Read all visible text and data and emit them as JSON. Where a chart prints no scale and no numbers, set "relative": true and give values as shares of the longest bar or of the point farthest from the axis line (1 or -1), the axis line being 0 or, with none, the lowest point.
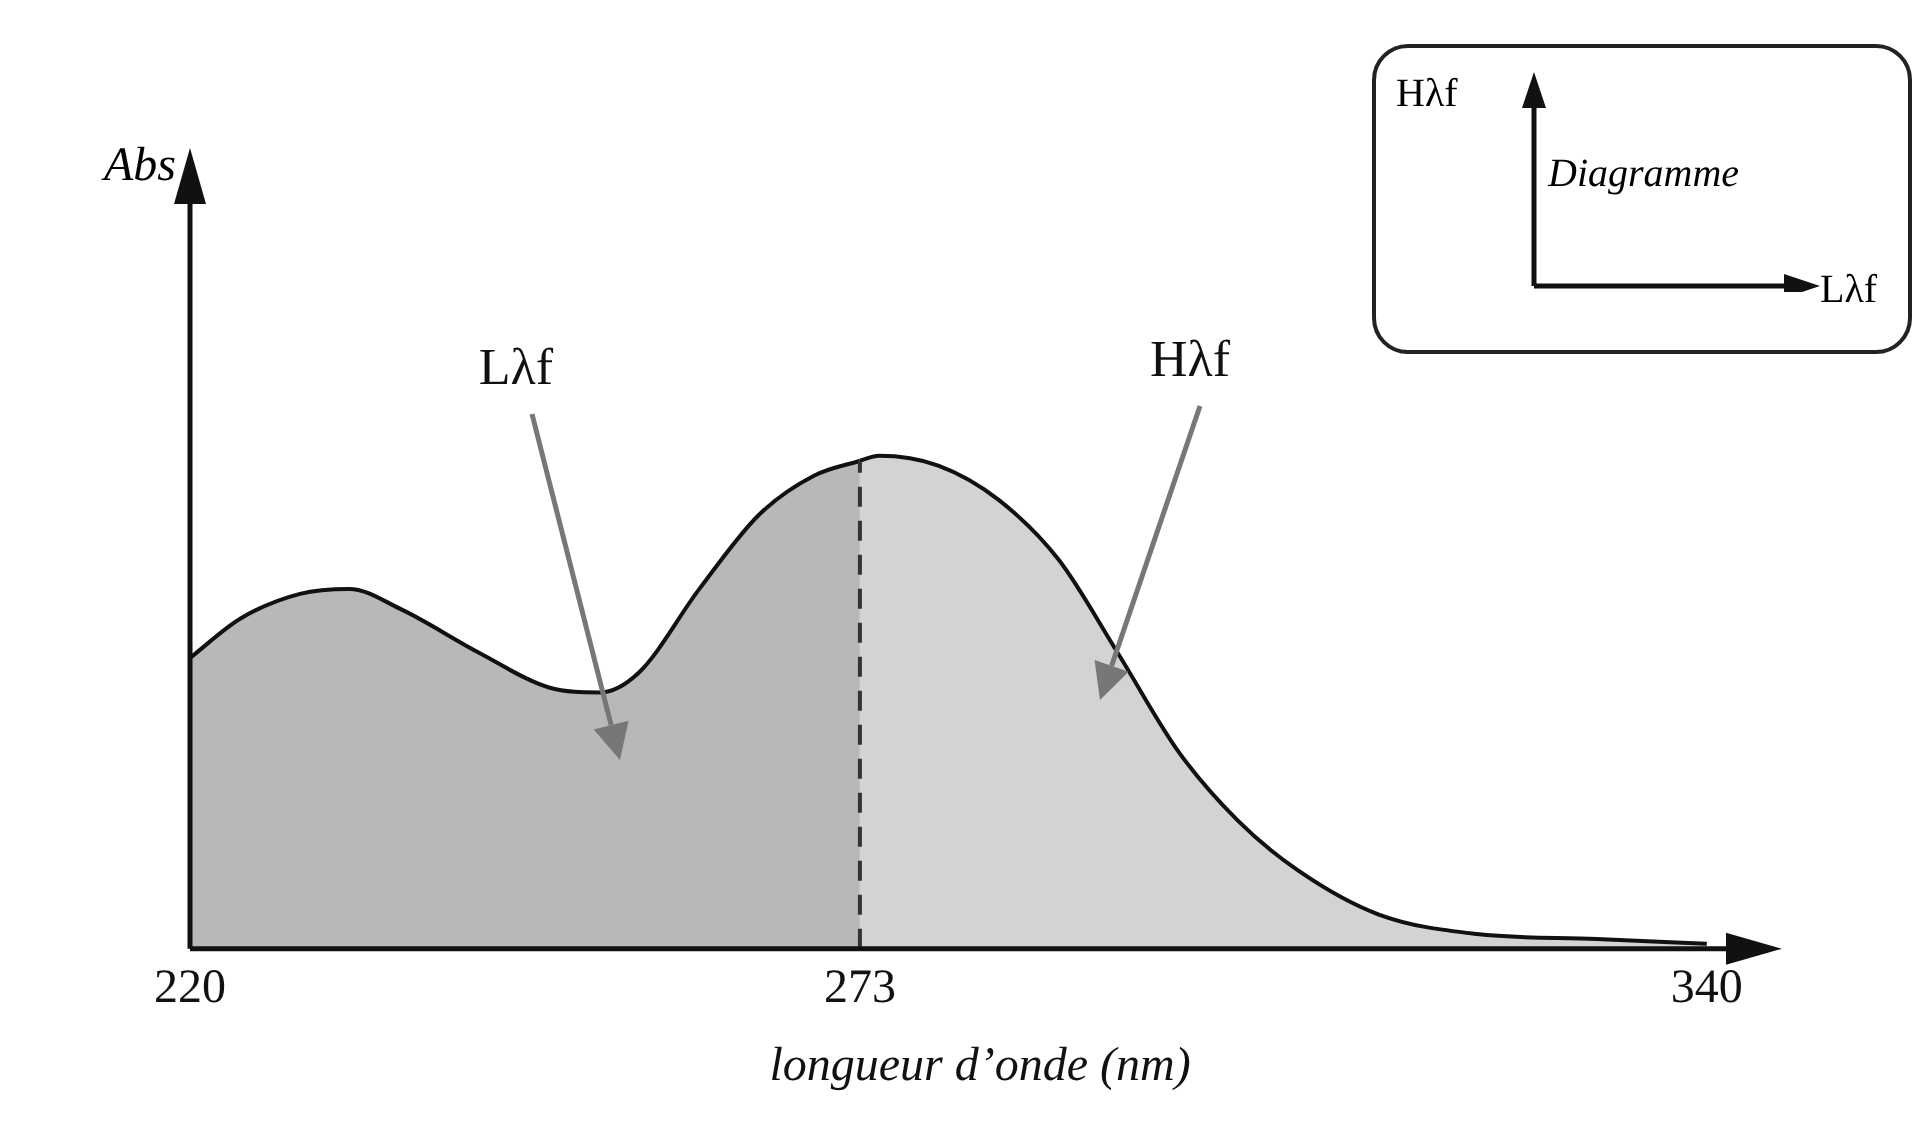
{
  "chart_data": {
    "type": "area",
    "relative": true,
    "xlabel": "longueur d’onde (nm)",
    "xlim": [
      220,
      345
    ],
    "xticks": [
      220,
      273,
      340
    ],
    "grid": false,
    "legend": false,
    "marker": "none",
    "series": [
      {
        "color": "#333333",
        "x": [
          220,
          224,
          228.7,
          232.6,
          236.6,
          242.9,
          248.4,
          252.4,
          255.5,
          260.3,
          265,
          269.4,
          273
        ],
        "values": [
          0.59,
          0.67,
          0.72,
          0.73,
          0.69,
          0.6,
          0.53,
          0.52,
          0.56,
          0.73,
          0.88,
          0.96,
          0.99
        ]
      },
      {
        "color": "#808080",
        "x": [
          273,
          274.5,
          279.2,
          284,
          288.7,
          293.4,
          298.2,
          302.9,
          307.6,
          314,
          321.8,
          331.3,
          340
        ],
        "values": [
          0.99,
          1.0,
          0.98,
          0.91,
          0.79,
          0.6,
          0.4,
          0.26,
          0.16,
          0.07,
          0.03,
          0.02,
          0.01
        ]
      }
    ],
    "ref_lines": [
      {
        "axis": "x",
        "value": 273,
        "line_style": "dashed",
        "color": "#333333"
      }
    ],
    "annotations": [
      "Abs",
      "Lλf",
      "Hλf",
      "Hλf",
      "Diagramme",
      "Lλf"
    ]
  }
}
